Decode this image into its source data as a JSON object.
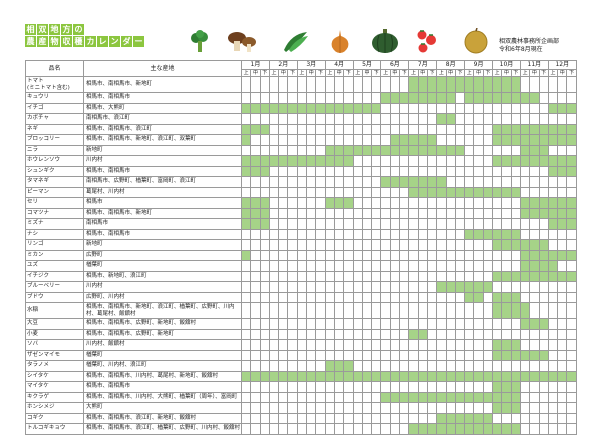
{
  "title": {
    "line1": "相双地方の",
    "line2": "農産物収穫カレンダー"
  },
  "icons": [
    "broccoli-icon",
    "mushroom-icon",
    "green-pepper-icon",
    "onion-icon",
    "pumpkin-icon",
    "tomato-icon",
    "pear-icon"
  ],
  "org": {
    "name": "相双農林事務所企画部",
    "date": "令和6年8月現在"
  },
  "headers": {
    "name": "品名",
    "area": "主な産地"
  },
  "months": [
    "1月",
    "2月",
    "3月",
    "4月",
    "5月",
    "6月",
    "7月",
    "8月",
    "9月",
    "10月",
    "11月",
    "12月"
  ],
  "subs": [
    "上",
    "中",
    "下"
  ],
  "colors": {
    "fill": "#a6d388",
    "title": "#8cc63f"
  },
  "rows": [
    {
      "name": "トマト\n(ミニトマト含む)",
      "area": "相馬市、南相馬市、新地町",
      "g": [
        [
          18,
          30
        ]
      ]
    },
    {
      "name": "キュウリ",
      "area": "相馬市、南相馬市",
      "g": [
        [
          15,
          23
        ],
        [
          24,
          32
        ]
      ]
    },
    {
      "name": "イチゴ",
      "area": "相馬市、大熊町",
      "g": [
        [
          0,
          15
        ],
        [
          33,
          36
        ]
      ]
    },
    {
      "name": "カボチャ",
      "area": "南相馬市、浪江町",
      "g": [
        [
          21,
          23
        ]
      ]
    },
    {
      "name": "ネギ",
      "area": "相馬市、南相馬市、浪江町",
      "g": [
        [
          0,
          3
        ],
        [
          27,
          36
        ]
      ]
    },
    {
      "name": "ブロッコリー",
      "area": "相馬市、南相馬市、新地町、浪江町、双葉町",
      "g": [
        [
          0,
          1
        ],
        [
          16,
          21
        ],
        [
          27,
          36
        ]
      ]
    },
    {
      "name": "ニラ",
      "area": "新地町",
      "g": [
        [
          9,
          24
        ],
        [
          30,
          33
        ]
      ]
    },
    {
      "name": "ホウレンソウ",
      "area": "川内村",
      "g": [
        [
          0,
          12
        ],
        [
          27,
          36
        ]
      ]
    },
    {
      "name": "シュンギク",
      "area": "相馬市、南相馬市",
      "g": [
        [
          0,
          3
        ],
        [
          33,
          36
        ]
      ]
    },
    {
      "name": "タマネギ",
      "area": "南相馬市、広野町、楢葉町、富岡町、浪江町",
      "g": [
        [
          15,
          22
        ]
      ]
    },
    {
      "name": "ピーマン",
      "area": "葛尾村、川内村",
      "g": [
        [
          18,
          30
        ]
      ]
    },
    {
      "name": "セリ",
      "area": "相馬市",
      "g": [
        [
          0,
          3
        ],
        [
          9,
          12
        ],
        [
          30,
          36
        ]
      ]
    },
    {
      "name": "コマツナ",
      "area": "相馬市、南相馬市、新地町",
      "g": [
        [
          0,
          3
        ],
        [
          30,
          36
        ]
      ]
    },
    {
      "name": "ミズナ",
      "area": "南相馬市",
      "g": [
        [
          0,
          3
        ],
        [
          33,
          36
        ]
      ]
    },
    {
      "name": "ナシ",
      "area": "相馬市、南相馬市",
      "g": [
        [
          24,
          30
        ]
      ]
    },
    {
      "name": "リンゴ",
      "area": "新地町",
      "g": [
        [
          27,
          33
        ]
      ]
    },
    {
      "name": "ミカン",
      "area": "広野町",
      "g": [
        [
          0,
          1
        ],
        [
          30,
          36
        ]
      ]
    },
    {
      "name": "ユズ",
      "area": "楢葉町",
      "g": [
        [
          30,
          34
        ]
      ]
    },
    {
      "name": "イチジク",
      "area": "相馬市、新地町、浪江町",
      "g": [
        [
          27,
          36
        ]
      ]
    },
    {
      "name": "ブルーベリー",
      "area": "川内村",
      "g": [
        [
          21,
          27
        ]
      ]
    },
    {
      "name": "ブドウ",
      "area": "広野町、川内村",
      "g": [
        [
          24,
          26
        ],
        [
          27,
          30
        ]
      ]
    },
    {
      "name": "水稲",
      "area": "相馬市、南相馬市、新地町、浪江町、楢葉町、広野町、川内村、葛尾村、飯舘村",
      "g": [
        [
          27,
          31
        ]
      ]
    },
    {
      "name": "大豆",
      "area": "相馬市、南相馬市、広野町、新地町、飯舘村",
      "g": [
        [
          30,
          33
        ]
      ]
    },
    {
      "name": "小麦",
      "area": "相馬市、南相馬市、広野町、新地町",
      "g": [
        [
          18,
          20
        ]
      ]
    },
    {
      "name": "ソバ",
      "area": "川内村、飯舘村",
      "g": [
        [
          27,
          30
        ]
      ]
    },
    {
      "name": "ザゼンマイモ",
      "area": "楢葉町",
      "g": [
        [
          27,
          33
        ]
      ]
    },
    {
      "name": "タラノメ",
      "area": "楢葉町、川内村、浪江町",
      "g": [
        [
          9,
          12
        ]
      ]
    },
    {
      "name": "シイタケ",
      "area": "相馬市、南相馬市、川内村、葛尾村、新地町、飯舘村",
      "g": [
        [
          0,
          36
        ]
      ]
    },
    {
      "name": "マイタケ",
      "area": "相馬市、南相馬市",
      "g": [
        [
          27,
          30
        ]
      ]
    },
    {
      "name": "キクラゲ",
      "area": "相馬市、南相馬市、川内村、大熊町、楢葉町（周年）、富岡町",
      "g": [
        [
          15,
          30
        ]
      ]
    },
    {
      "name": "ホンシメジ",
      "area": "大熊町",
      "g": [
        [
          27,
          30
        ]
      ]
    },
    {
      "name": "コギク",
      "area": "相馬市、南相馬市、浪江町、新地町、飯舘村",
      "g": [
        [
          21,
          27
        ]
      ]
    },
    {
      "name": "トルコギキョウ",
      "area": "相馬市、南相馬市、浪江町、楢葉町、広野町、川内村、飯舘村",
      "g": [
        [
          18,
          30
        ]
      ]
    }
  ]
}
